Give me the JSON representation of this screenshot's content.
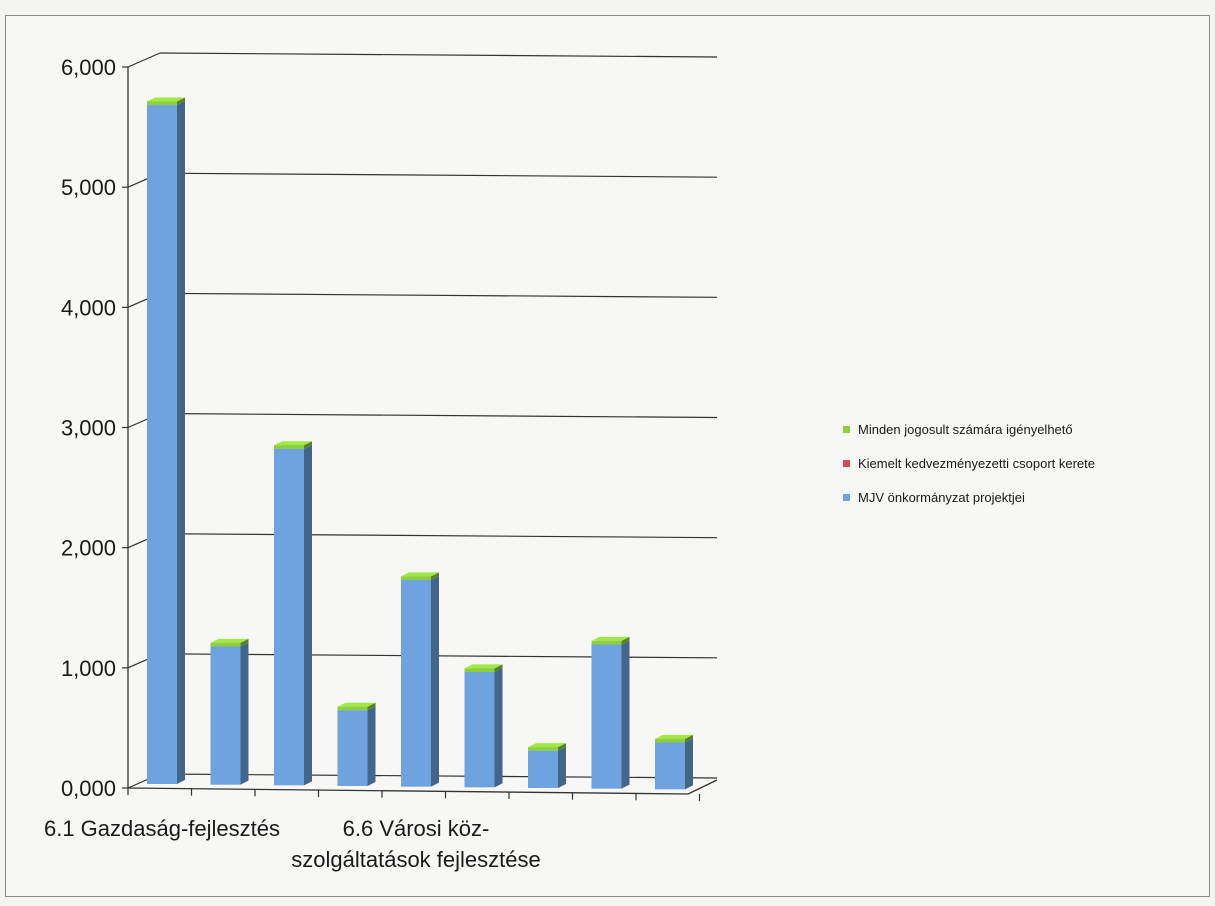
{
  "colors": {
    "mjv": "#6ea3df",
    "kiemelt": "#d9485a",
    "minden": "#8fcf3e",
    "grid": "#333333"
  },
  "legend": {
    "items": [
      {
        "label": "Minden jogosult számára igényelhető",
        "color": "#8fcf3e"
      },
      {
        "label": "Kiemelt kedvezményezetti csoport kerete",
        "color": "#d9485a"
      },
      {
        "label": "MJV önkormányzat projektjei",
        "color": "#6ea3df"
      }
    ]
  },
  "chart_data": {
    "type": "bar",
    "stacked": true,
    "three_d": true,
    "title": "",
    "xlabel": "",
    "ylabel": "",
    "ylim": [
      0,
      6000
    ],
    "yticks": [
      "0,000",
      "1,000",
      "2,000",
      "3,000",
      "4,000",
      "5,000",
      "6,000"
    ],
    "categories": [
      "6.1 Gazdaság-fejlesztés",
      "",
      "",
      "",
      "6.6 Városi köz-szolgáltatások fejlesztése",
      "",
      "",
      "",
      ""
    ],
    "category_label_lines": [
      [
        "6.1 Gazdaság-fejlesztés"
      ],
      [],
      [],
      [],
      [
        "6.6 Városi köz-",
        "szolgáltatások fejlesztése"
      ],
      [],
      [],
      [],
      []
    ],
    "grid": true,
    "legend_position": "right",
    "series": [
      {
        "name": "MJV önkormányzat projektjei",
        "values": [
          5650,
          1150,
          2800,
          630,
          1720,
          960,
          310,
          1200,
          390
        ]
      },
      {
        "name": "Kiemelt kedvezményezetti csoport kerete",
        "values": [
          0,
          0,
          0,
          0,
          0,
          0,
          0,
          0,
          0
        ]
      },
      {
        "name": "Minden jogosult számára igényelhető",
        "values": [
          30,
          30,
          30,
          30,
          30,
          30,
          30,
          30,
          30
        ]
      }
    ]
  }
}
